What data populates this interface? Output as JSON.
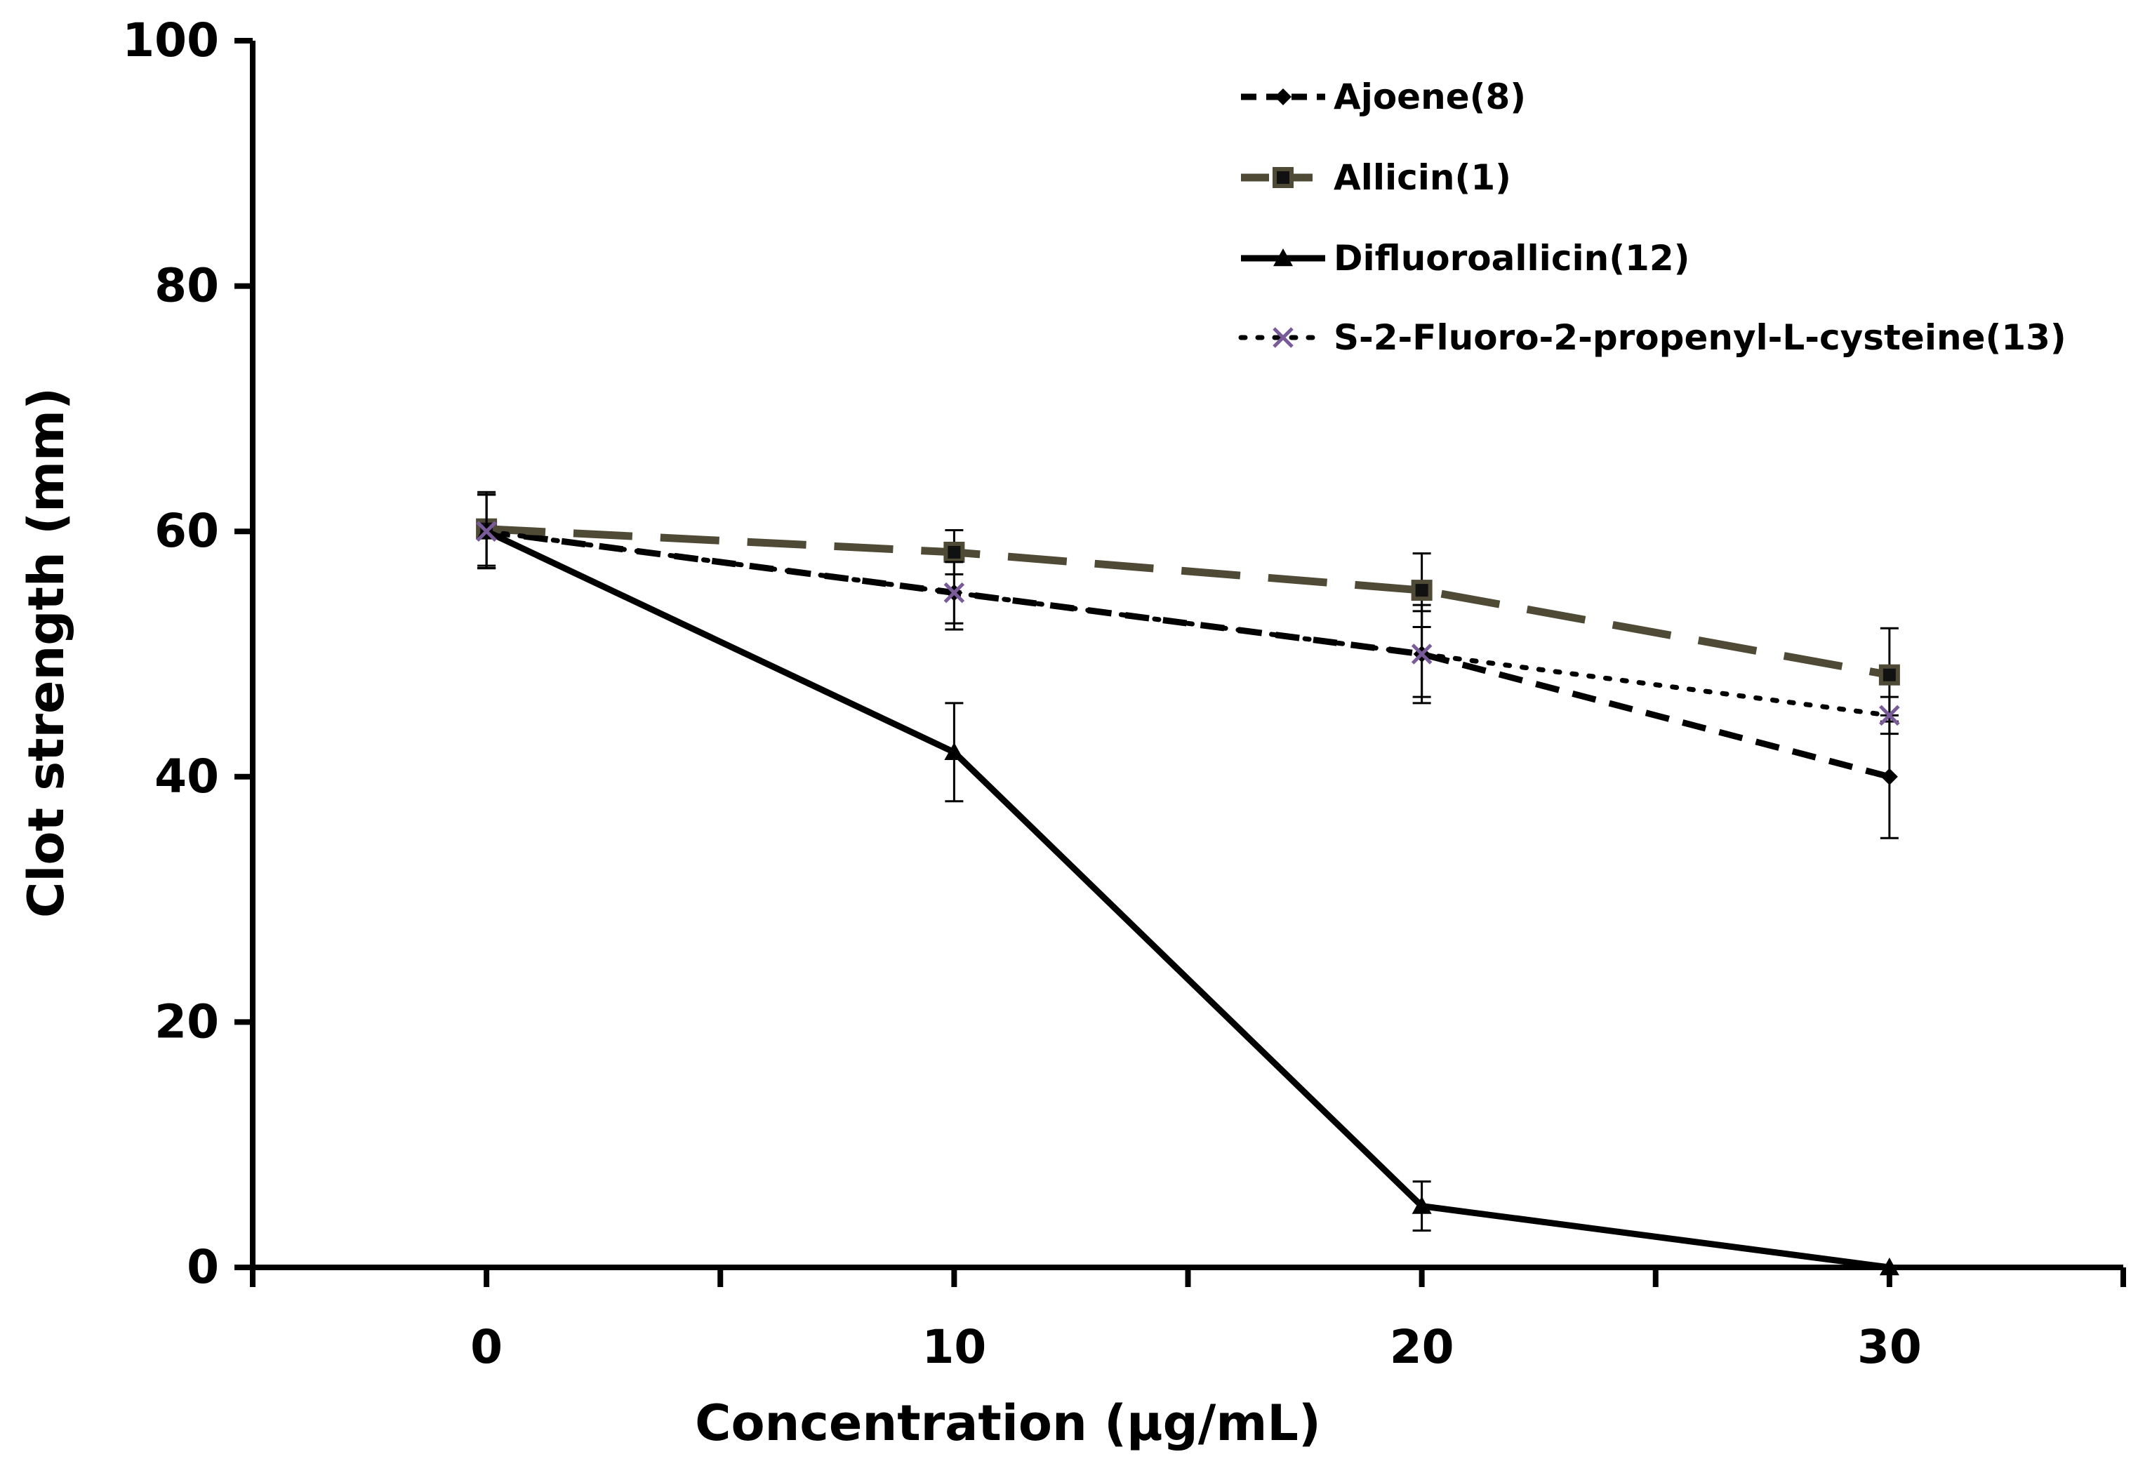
{
  "chart_data": {
    "type": "line",
    "title": "",
    "xlabel": "Concentration (µg/mL)",
    "ylabel": "Clot strength (mm)",
    "x": [
      0,
      10,
      20,
      30
    ],
    "xlim": [
      -5,
      35
    ],
    "xticks": [
      0,
      10,
      20,
      30
    ],
    "ylim": [
      0,
      100
    ],
    "yticks": [
      0,
      20,
      40,
      60,
      80,
      100
    ],
    "grid": false,
    "legend_position": "top-right",
    "series": [
      {
        "name": "Ajoene(8)",
        "values": [
          60,
          55,
          50,
          40
        ],
        "errors": [
          3,
          3,
          4,
          5
        ],
        "color": "#000000",
        "line_style": "short-dash",
        "marker": "diamond"
      },
      {
        "name": "Allicin(1)",
        "values": [
          60.2,
          58.3,
          55.2,
          48.3
        ],
        "errors": [
          3,
          1.8,
          3,
          3.8
        ],
        "color": "#4f4a36",
        "line_style": "long-dash",
        "marker": "square"
      },
      {
        "name": "Difluoroallicin(12)",
        "values": [
          60,
          42,
          5,
          0
        ],
        "errors": [
          3,
          4,
          2,
          0
        ],
        "color": "#000000",
        "line_style": "solid",
        "marker": "triangle"
      },
      {
        "name": "S-2-Fluoro-2-propenyl-L-cysteine(13)",
        "values": [
          60,
          55,
          50,
          45
        ],
        "errors": [
          3,
          2.5,
          3.5,
          1.5
        ],
        "color": "#000000",
        "line_style": "dotted",
        "marker": "x",
        "marker_color": "#7a5b9a"
      }
    ]
  }
}
